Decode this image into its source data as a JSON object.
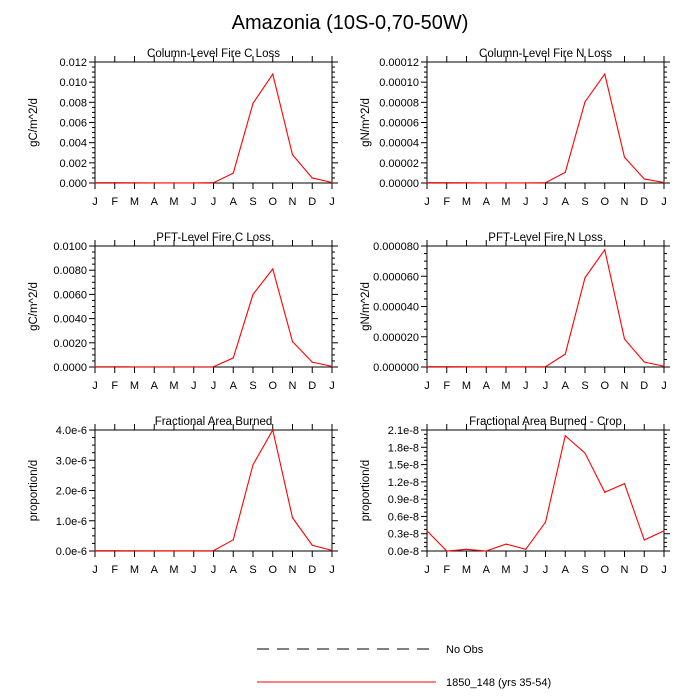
{
  "figure": {
    "title": "Amazonia (10S-0,70-50W)"
  },
  "legend": [
    {
      "label": "No Obs",
      "style": "dashed",
      "color": "#000000"
    },
    {
      "label": "1850_148 (yrs 35-54)",
      "style": "solid",
      "color": "#ff0000"
    }
  ],
  "colors": {
    "series": "#ff0000",
    "axis": "#000000"
  },
  "chart_data": [
    {
      "type": "line",
      "title": "Column-Level Fire C Loss",
      "xlabel": "",
      "ylabel": "gC/m^2/d",
      "categories": [
        "J",
        "F",
        "M",
        "A",
        "M",
        "J",
        "J",
        "A",
        "S",
        "O",
        "N",
        "D",
        "J"
      ],
      "ylim": [
        0,
        0.012
      ],
      "yticks": [
        0,
        0.002,
        0.004,
        0.006,
        0.008,
        0.01,
        0.012
      ],
      "ytick_labels": [
        "0.000",
        "0.002",
        "0.004",
        "0.006",
        "0.008",
        "0.010",
        "0.012"
      ],
      "series": [
        {
          "name": "1850_148 (yrs 35-54)",
          "color": "#ff0000",
          "values": [
            3e-05,
            3e-05,
            2e-05,
            1e-05,
            1e-05,
            1e-05,
            3e-05,
            0.00098,
            0.0079,
            0.0108,
            0.0028,
            0.0005,
            5e-05
          ]
        }
      ]
    },
    {
      "type": "line",
      "title": "Column-Level Fire N Loss",
      "xlabel": "",
      "ylabel": "gN/m^2/d",
      "categories": [
        "J",
        "F",
        "M",
        "A",
        "M",
        "J",
        "J",
        "A",
        "S",
        "O",
        "N",
        "D",
        "J"
      ],
      "ylim": [
        0,
        0.00012
      ],
      "yticks": [
        0,
        2e-05,
        4e-05,
        6e-05,
        8e-05,
        0.0001,
        0.00012
      ],
      "ytick_labels": [
        "0.00000",
        "0.00002",
        "0.00004",
        "0.00006",
        "0.00008",
        "0.00010",
        "0.00012"
      ],
      "series": [
        {
          "name": "1850_148 (yrs 35-54)",
          "color": "#ff0000",
          "values": [
            3e-07,
            3e-07,
            2e-07,
            1e-07,
            1e-07,
            1e-07,
            3e-07,
            1.05e-05,
            8.05e-05,
            0.000108,
            2.55e-05,
            4e-06,
            5e-07
          ]
        }
      ]
    },
    {
      "type": "line",
      "title": "PFT-Level Fire C Loss",
      "xlabel": "",
      "ylabel": "gC/m^2/d",
      "categories": [
        "J",
        "F",
        "M",
        "A",
        "M",
        "J",
        "J",
        "A",
        "S",
        "O",
        "N",
        "D",
        "J"
      ],
      "ylim": [
        0,
        0.01
      ],
      "yticks": [
        0,
        0.002,
        0.004,
        0.006,
        0.008,
        0.01
      ],
      "ytick_labels": [
        "0.0000",
        "0.0020",
        "0.0040",
        "0.0060",
        "0.0080",
        "0.0100"
      ],
      "series": [
        {
          "name": "1850_148 (yrs 35-54)",
          "color": "#ff0000",
          "values": [
            2e-05,
            2e-05,
            1e-05,
            1e-05,
            1e-05,
            1e-05,
            2e-05,
            0.00075,
            0.006,
            0.0081,
            0.0021,
            0.0004,
            5e-05
          ]
        }
      ]
    },
    {
      "type": "line",
      "title": "PFT-Level Fire N Loss",
      "xlabel": "",
      "ylabel": "gN/m^2/d",
      "categories": [
        "J",
        "F",
        "M",
        "A",
        "M",
        "J",
        "J",
        "A",
        "S",
        "O",
        "N",
        "D",
        "J"
      ],
      "ylim": [
        0,
        8e-05
      ],
      "yticks": [
        0,
        2e-05,
        4e-05,
        6e-05,
        8e-05
      ],
      "ytick_labels": [
        "0.000000",
        "0.000020",
        "0.000040",
        "0.000060",
        "0.000080"
      ],
      "series": [
        {
          "name": "1850_148 (yrs 35-54)",
          "color": "#ff0000",
          "values": [
            2e-07,
            2e-07,
            1e-07,
            1e-07,
            1e-07,
            1e-07,
            2e-07,
            8.5e-06,
            5.9e-05,
            7.75e-05,
            1.85e-05,
            3.3e-06,
            5e-07
          ]
        }
      ]
    },
    {
      "type": "line",
      "title": "Fractional Area Burned",
      "xlabel": "",
      "ylabel": "proportion/d",
      "categories": [
        "J",
        "F",
        "M",
        "A",
        "M",
        "J",
        "J",
        "A",
        "S",
        "O",
        "N",
        "D",
        "J"
      ],
      "ylim": [
        0,
        4e-06
      ],
      "yticks": [
        0,
        1e-06,
        2e-06,
        3e-06,
        4e-06
      ],
      "ytick_labels": [
        "0.0e-6",
        "1.0e-6",
        "2.0e-6",
        "3.0e-6",
        "4.0e-6"
      ],
      "series": [
        {
          "name": "1850_148 (yrs 35-54)",
          "color": "#ff0000",
          "values": [
            1e-08,
            1e-08,
            8e-09,
            5e-09,
            5e-09,
            5e-09,
            1e-08,
            3.7e-07,
            2.85e-06,
            4e-06,
            1.1e-06,
            1.9e-07,
            2e-08
          ]
        }
      ]
    },
    {
      "type": "line",
      "title": "Fractional Area Burned - Crop",
      "xlabel": "",
      "ylabel": "proportion/d",
      "categories": [
        "J",
        "F",
        "M",
        "A",
        "M",
        "J",
        "J",
        "A",
        "S",
        "O",
        "N",
        "D",
        "J"
      ],
      "ylim": [
        0,
        2.1e-08
      ],
      "yticks": [
        0,
        3e-09,
        6e-09,
        9e-09,
        1.2e-08,
        1.5e-08,
        1.8e-08,
        2.1e-08
      ],
      "ytick_labels": [
        "0.0e-8",
        "0.3e-8",
        "0.6e-8",
        "0.9e-8",
        "1.2e-8",
        "1.5e-8",
        "1.8e-8",
        "2.1e-8"
      ],
      "series": [
        {
          "name": "1850_148 (yrs 35-54)",
          "color": "#ff0000",
          "values": [
            3.5e-09,
            0.0,
            3e-10,
            0.0,
            1.2e-09,
            3e-10,
            5e-09,
            2e-08,
            1.7e-08,
            1.02e-08,
            1.17e-08,
            1.9e-09,
            3.5e-09
          ]
        }
      ]
    }
  ]
}
